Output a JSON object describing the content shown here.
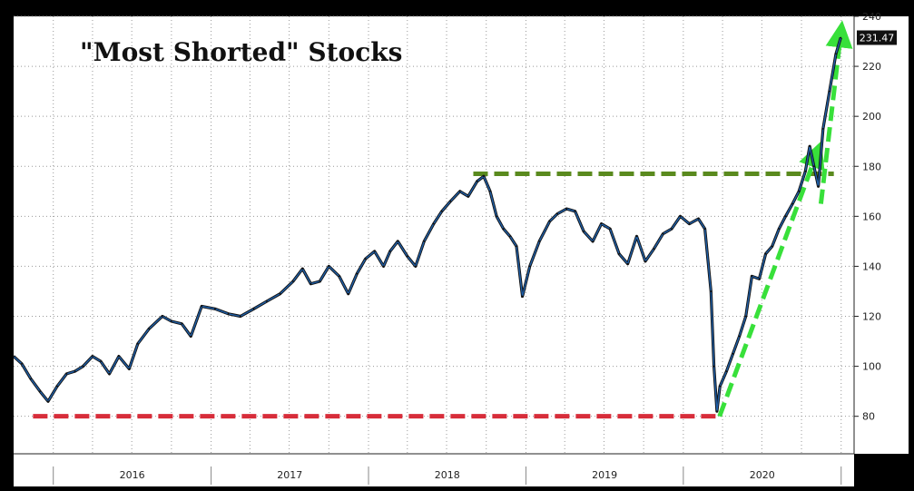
{
  "chart_data": {
    "type": "line",
    "title": "\"Most Shorted\" Stocks",
    "xlabel": "",
    "ylabel": "",
    "ylim": [
      65,
      240
    ],
    "x_range": [
      "2015-10-01",
      "2021-01-31"
    ],
    "y_ticks": [
      "80",
      "100",
      "120",
      "140",
      "160",
      "180",
      "200",
      "220",
      "240"
    ],
    "x_ticks": [
      "2016",
      "2017",
      "2018",
      "2019",
      "2020"
    ],
    "last_value_label": "231.47",
    "grid": true,
    "series": [
      {
        "color": "#1f5fa8",
        "points": [
          [
            "2015-10-01",
            104
          ],
          [
            "2015-10-20",
            101
          ],
          [
            "2015-11-10",
            95
          ],
          [
            "2015-12-01",
            90
          ],
          [
            "2015-12-20",
            86
          ],
          [
            "2016-01-10",
            92
          ],
          [
            "2016-02-01",
            97
          ],
          [
            "2016-02-20",
            98
          ],
          [
            "2016-03-10",
            100
          ],
          [
            "2016-04-01",
            104
          ],
          [
            "2016-04-20",
            102
          ],
          [
            "2016-05-10",
            97
          ],
          [
            "2016-06-01",
            104
          ],
          [
            "2016-06-25",
            99
          ],
          [
            "2016-07-15",
            109
          ],
          [
            "2016-08-10",
            115
          ],
          [
            "2016-09-10",
            120
          ],
          [
            "2016-10-01",
            118
          ],
          [
            "2016-10-25",
            117
          ],
          [
            "2016-11-15",
            112
          ],
          [
            "2016-12-10",
            124
          ],
          [
            "2017-01-10",
            123
          ],
          [
            "2017-02-10",
            121
          ],
          [
            "2017-03-10",
            120
          ],
          [
            "2017-04-10",
            123
          ],
          [
            "2017-05-10",
            126
          ],
          [
            "2017-06-10",
            129
          ],
          [
            "2017-07-10",
            134
          ],
          [
            "2017-08-01",
            139
          ],
          [
            "2017-08-20",
            133
          ],
          [
            "2017-09-10",
            134
          ],
          [
            "2017-10-01",
            140
          ],
          [
            "2017-10-25",
            136
          ],
          [
            "2017-11-15",
            129
          ],
          [
            "2017-12-05",
            137
          ],
          [
            "2017-12-25",
            143
          ],
          [
            "2018-01-15",
            146
          ],
          [
            "2018-02-05",
            140
          ],
          [
            "2018-02-20",
            146
          ],
          [
            "2018-03-10",
            150
          ],
          [
            "2018-04-01",
            144
          ],
          [
            "2018-04-20",
            140
          ],
          [
            "2018-05-10",
            150
          ],
          [
            "2018-06-01",
            157
          ],
          [
            "2018-06-20",
            162
          ],
          [
            "2018-07-10",
            166
          ],
          [
            "2018-08-01",
            170
          ],
          [
            "2018-08-20",
            168
          ],
          [
            "2018-09-10",
            174
          ],
          [
            "2018-09-25",
            176
          ],
          [
            "2018-10-10",
            170
          ],
          [
            "2018-10-25",
            160
          ],
          [
            "2018-11-10",
            155
          ],
          [
            "2018-11-25",
            152
          ],
          [
            "2018-12-10",
            148
          ],
          [
            "2018-12-24",
            128
          ],
          [
            "2019-01-10",
            140
          ],
          [
            "2019-02-01",
            150
          ],
          [
            "2019-02-25",
            158
          ],
          [
            "2019-03-15",
            161
          ],
          [
            "2019-04-05",
            163
          ],
          [
            "2019-04-25",
            162
          ],
          [
            "2019-05-15",
            154
          ],
          [
            "2019-06-05",
            150
          ],
          [
            "2019-06-25",
            157
          ],
          [
            "2019-07-15",
            155
          ],
          [
            "2019-08-05",
            145
          ],
          [
            "2019-08-25",
            141
          ],
          [
            "2019-09-15",
            152
          ],
          [
            "2019-10-05",
            142
          ],
          [
            "2019-10-25",
            147
          ],
          [
            "2019-11-15",
            153
          ],
          [
            "2019-12-05",
            155
          ],
          [
            "2019-12-25",
            160
          ],
          [
            "2020-01-15",
            157
          ],
          [
            "2020-02-05",
            159
          ],
          [
            "2020-02-20",
            155
          ],
          [
            "2020-03-05",
            130
          ],
          [
            "2020-03-12",
            100
          ],
          [
            "2020-03-19",
            82
          ],
          [
            "2020-03-26",
            92
          ],
          [
            "2020-04-10",
            98
          ],
          [
            "2020-04-25",
            105
          ],
          [
            "2020-05-10",
            112
          ],
          [
            "2020-05-25",
            120
          ],
          [
            "2020-06-08",
            136
          ],
          [
            "2020-06-25",
            135
          ],
          [
            "2020-07-10",
            145
          ],
          [
            "2020-07-25",
            148
          ],
          [
            "2020-08-10",
            155
          ],
          [
            "2020-08-25",
            160
          ],
          [
            "2020-09-10",
            165
          ],
          [
            "2020-09-25",
            170
          ],
          [
            "2020-10-10",
            178
          ],
          [
            "2020-10-20",
            188
          ],
          [
            "2020-10-30",
            180
          ],
          [
            "2020-11-09",
            172
          ],
          [
            "2020-11-20",
            195
          ],
          [
            "2020-12-05",
            210
          ],
          [
            "2020-12-20",
            225
          ],
          [
            "2020-12-31",
            231.47
          ]
        ]
      }
    ],
    "annotations": [
      {
        "type": "hline",
        "y": 80,
        "from": "2015-11-15",
        "to": "2020-03-20",
        "color": "#d72d3a",
        "style": "dashed"
      },
      {
        "type": "hline",
        "y": 177,
        "from": "2018-09-01",
        "to": "2020-12-15",
        "color": "#5a8a1e",
        "style": "dashed"
      },
      {
        "type": "arrow",
        "from": [
          "2020-03-25",
          80
        ],
        "to": [
          "2020-11-05",
          185
        ],
        "color": "#38e03a",
        "style": "dashed"
      },
      {
        "type": "arrow",
        "from": [
          "2020-11-15",
          165
        ],
        "to": [
          "2020-12-31",
          233
        ],
        "color": "#38e03a",
        "style": "dashed"
      }
    ]
  }
}
